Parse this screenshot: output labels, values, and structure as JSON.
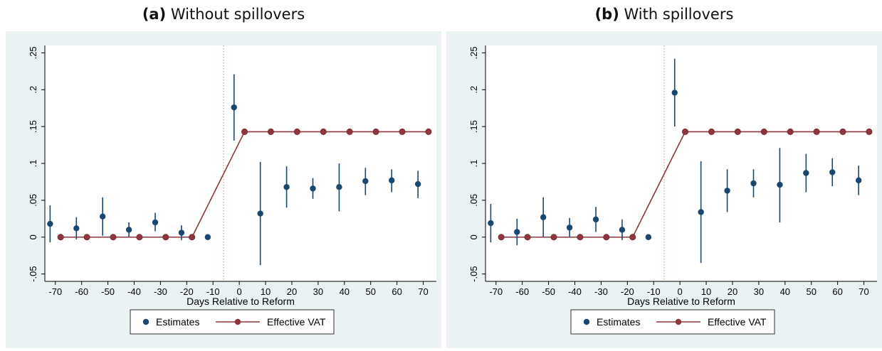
{
  "colors": {
    "estimate": "#1a476f",
    "vat_line": "#90353b",
    "vat_marker": "#90353b",
    "panel_bg": "#eaf2f3",
    "plot_bg": "#ffffff",
    "reform_line": "#e08080"
  },
  "chart_data": [
    {
      "panel_label": "(a)",
      "title": "Without spillovers",
      "type": "scatter",
      "xlabel": "Days Relative to Reform",
      "ylabel": "",
      "xlim": [
        -74,
        75
      ],
      "ylim": [
        -0.06,
        0.26
      ],
      "xticks": [
        -70,
        -60,
        -50,
        -40,
        -30,
        -20,
        -10,
        0,
        10,
        20,
        30,
        40,
        50,
        60,
        70
      ],
      "xtick_labels": [
        "-70",
        "-60",
        "-50",
        "-40",
        "-30",
        "-20",
        "-10",
        "0",
        "10",
        "20",
        "30",
        "40",
        "50",
        "60",
        "70"
      ],
      "yticks": [
        -0.05,
        0,
        0.05,
        0.1,
        0.15,
        0.2,
        0.25
      ],
      "ytick_labels": [
        "-.05",
        "0",
        ".05",
        ".1",
        ".15",
        ".2",
        ".25"
      ],
      "reform_x": -6,
      "legend": [
        "Estimates",
        "Effective VAT"
      ],
      "legend_position": "bottom",
      "estimates": {
        "name": "Estimates",
        "x": [
          -72,
          -62,
          -52,
          -42,
          -32,
          -22,
          -12,
          -2,
          8,
          18,
          28,
          38,
          48,
          58,
          68
        ],
        "y": [
          0.018,
          0.012,
          0.028,
          0.01,
          0.02,
          0.006,
          0.0,
          0.176,
          0.032,
          0.068,
          0.066,
          0.068,
          0.076,
          0.077,
          0.072
        ],
        "ci_low": [
          -0.007,
          -0.003,
          0.002,
          0.0,
          0.008,
          -0.004,
          0.0,
          0.131,
          -0.038,
          0.04,
          0.052,
          0.035,
          0.057,
          0.061,
          0.053
        ],
        "ci_high": [
          0.043,
          0.027,
          0.054,
          0.02,
          0.033,
          0.016,
          0.0,
          0.221,
          0.102,
          0.096,
          0.08,
          0.1,
          0.094,
          0.092,
          0.09
        ]
      },
      "effective_vat": {
        "name": "Effective VAT",
        "x": [
          -68,
          -58,
          -48,
          -38,
          -28,
          -18,
          2,
          12,
          22,
          32,
          42,
          52,
          62,
          72
        ],
        "y": [
          0,
          0,
          0,
          0,
          0,
          0,
          0.143,
          0.143,
          0.143,
          0.143,
          0.143,
          0.143,
          0.143,
          0.143
        ]
      }
    },
    {
      "panel_label": "(b)",
      "title": "With spillovers",
      "type": "scatter",
      "xlabel": "Days Relative to Reform",
      "ylabel": "",
      "xlim": [
        -74,
        75
      ],
      "ylim": [
        -0.06,
        0.26
      ],
      "xticks": [
        -70,
        -60,
        -50,
        -40,
        -30,
        -20,
        -10,
        0,
        10,
        20,
        30,
        40,
        50,
        60,
        70
      ],
      "xtick_labels": [
        "-70",
        "-60",
        "-50",
        "-40",
        "-30",
        "-20",
        "-10",
        "0",
        "10",
        "20",
        "30",
        "40",
        "50",
        "60",
        "70"
      ],
      "yticks": [
        -0.05,
        0,
        0.05,
        0.1,
        0.15,
        0.2,
        0.25
      ],
      "ytick_labels": [
        "-.05",
        "0",
        ".05",
        ".1",
        ".15",
        ".2",
        ".25"
      ],
      "reform_x": -6,
      "legend": [
        "Estimates",
        "Effective VAT"
      ],
      "legend_position": "bottom",
      "estimates": {
        "name": "Estimates",
        "x": [
          -72,
          -62,
          -52,
          -42,
          -32,
          -22,
          -12,
          -2,
          8,
          18,
          28,
          38,
          48,
          58,
          68
        ],
        "y": [
          0.019,
          0.007,
          0.027,
          0.013,
          0.024,
          0.01,
          0.0,
          0.196,
          0.034,
          0.063,
          0.073,
          0.071,
          0.087,
          0.088,
          0.077
        ],
        "ci_low": [
          -0.007,
          -0.011,
          0.0,
          0.0,
          0.007,
          -0.004,
          0.0,
          0.15,
          -0.035,
          0.034,
          0.054,
          0.02,
          0.061,
          0.069,
          0.057
        ],
        "ci_high": [
          0.045,
          0.025,
          0.054,
          0.026,
          0.041,
          0.024,
          0.0,
          0.242,
          0.103,
          0.092,
          0.092,
          0.121,
          0.113,
          0.107,
          0.097
        ]
      },
      "effective_vat": {
        "name": "Effective VAT",
        "x": [
          -68,
          -58,
          -48,
          -38,
          -28,
          -18,
          2,
          12,
          22,
          32,
          42,
          52,
          62,
          72
        ],
        "y": [
          0,
          0,
          0,
          0,
          0,
          0,
          0.143,
          0.143,
          0.143,
          0.143,
          0.143,
          0.143,
          0.143,
          0.143
        ]
      }
    }
  ]
}
